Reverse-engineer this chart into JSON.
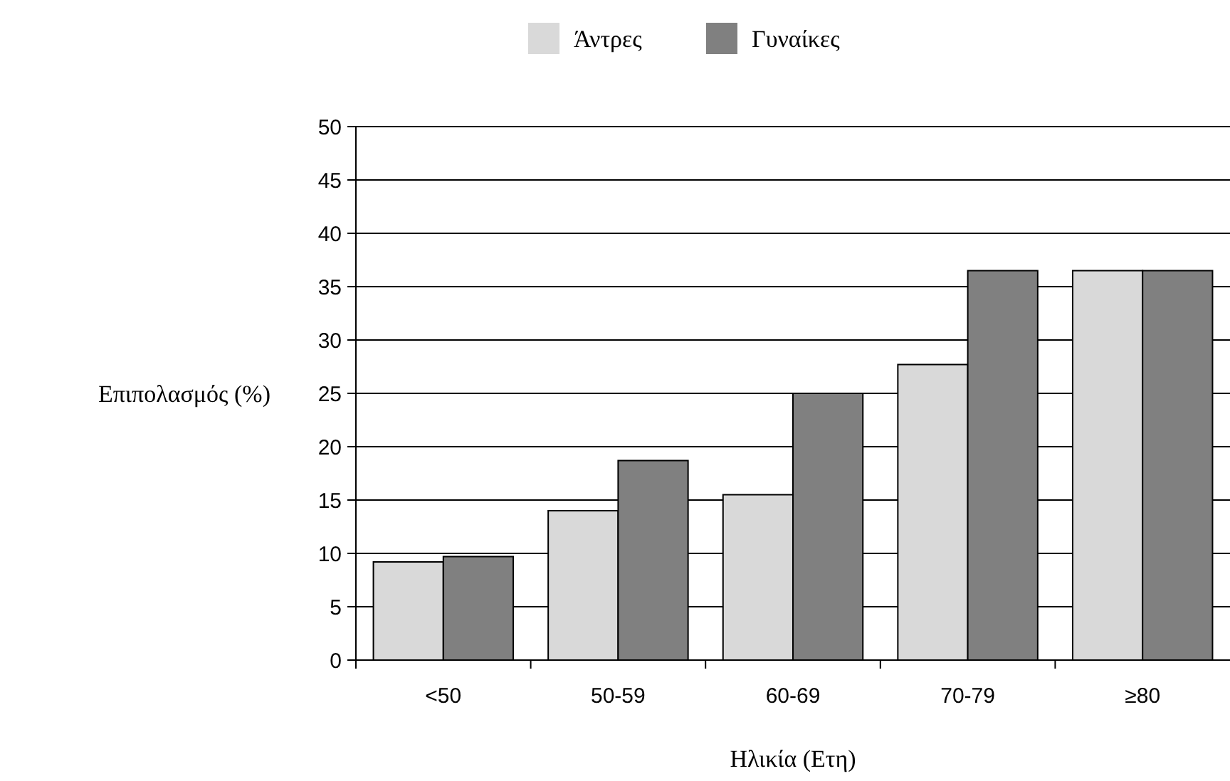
{
  "chart_data": {
    "type": "bar",
    "xlabel": "Ηλικία (Ετη)",
    "ylabel": "Επιπολασμός (%)",
    "categories": [
      "<50",
      "50-59",
      "60-69",
      "70-79",
      "≥80"
    ],
    "series": [
      {
        "name": "Άντρες",
        "color": "#d9d9d9",
        "values": [
          9.2,
          14,
          15.5,
          27.7,
          36.5
        ]
      },
      {
        "name": "Γυναίκες",
        "color": "#808080",
        "values": [
          9.7,
          18.7,
          25,
          36.5,
          36.5
        ]
      }
    ],
    "ylim": [
      0,
      50
    ],
    "yticks": [
      0,
      5,
      10,
      15,
      20,
      25,
      30,
      35,
      40,
      45,
      50
    ],
    "grid": "y",
    "legend": "top"
  }
}
